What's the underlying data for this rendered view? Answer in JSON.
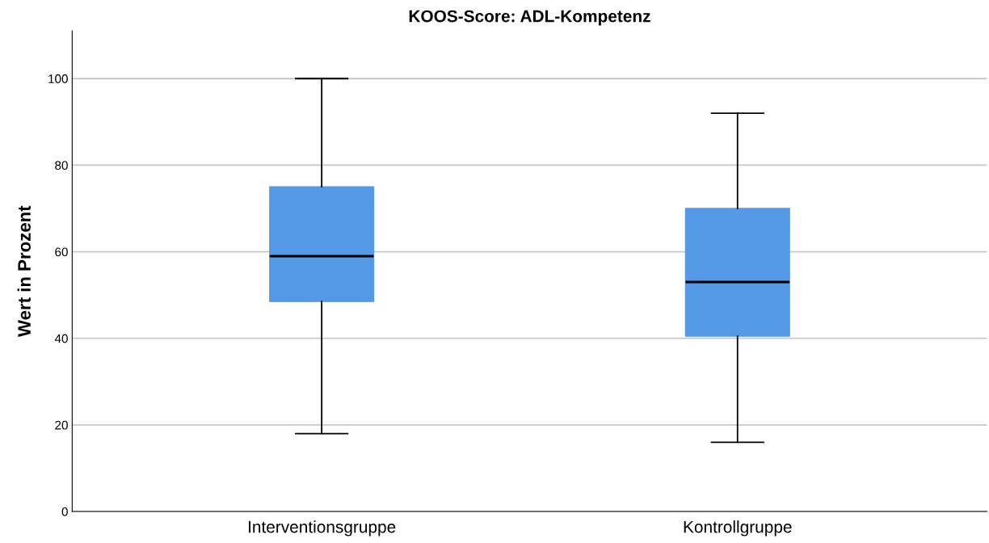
{
  "chart_data": {
    "type": "box",
    "title": "KOOS-Score: ADL-Kompetenz",
    "ylabel": "Wert in Prozent",
    "categories": [
      "Interventionsgruppe",
      "Kontrollgruppe"
    ],
    "boxes": [
      {
        "low": 18,
        "q1": 48.5,
        "median": 59,
        "q3": 75,
        "high": 100
      },
      {
        "low": 16,
        "q1": 40.5,
        "median": 53,
        "q3": 70,
        "high": 92
      }
    ],
    "color": "#5598e6",
    "ylim": [
      0,
      111
    ],
    "yticks": [
      0,
      20,
      40,
      60,
      80,
      100
    ],
    "grid": "y"
  }
}
